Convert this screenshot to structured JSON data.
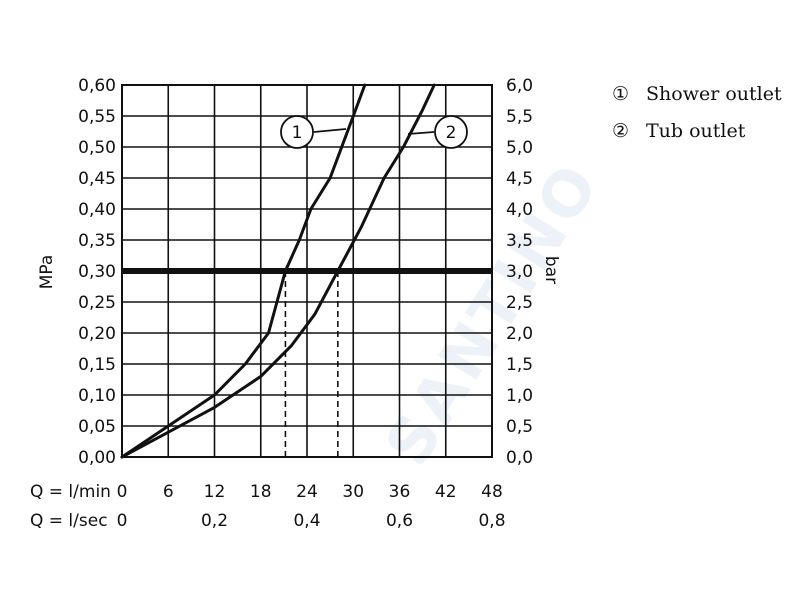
{
  "chart_data": {
    "type": "line",
    "ylabel": "MPa",
    "ylabel_right": "bar",
    "ylim": [
      0,
      0.6
    ],
    "y_ticks": [
      "0,00",
      "0,05",
      "0,10",
      "0,15",
      "0,20",
      "0,25",
      "0,30",
      "0,35",
      "0,40",
      "0,45",
      "0,50",
      "0,55",
      "0,60"
    ],
    "y_right_ticks": [
      "0,0",
      "0,5",
      "1,0",
      "1,5",
      "2,0",
      "2,5",
      "3,0",
      "3,5",
      "4,0",
      "4,5",
      "5,0",
      "5,5",
      "6,0"
    ],
    "xlim": [
      0,
      48
    ],
    "x_label_lmin": "Q = l/min",
    "x_ticks_lmin": [
      "0",
      "6",
      "12",
      "18",
      "24",
      "30",
      "36",
      "42",
      "48"
    ],
    "x_label_lsec": "Q = l/sec",
    "x_ticks_lsec": [
      {
        "value": 0,
        "label": "0"
      },
      {
        "value": 12,
        "label": "0,2"
      },
      {
        "value": 24,
        "label": "0,4"
      },
      {
        "value": 36,
        "label": "0,6"
      },
      {
        "value": 48,
        "label": "0,8"
      }
    ],
    "reference_line": {
      "y": 0.3
    },
    "dashed_markers": [
      {
        "series": "1",
        "x": 21.2,
        "y": 0.3
      },
      {
        "series": "2",
        "x": 28.0,
        "y": 0.3
      }
    ],
    "series": [
      {
        "id": "1",
        "name": "Shower outlet",
        "x": [
          0,
          6,
          12,
          16,
          19,
          21.2,
          23,
          24.5,
          27,
          30,
          31.5
        ],
        "y": [
          0,
          0.05,
          0.1,
          0.15,
          0.2,
          0.3,
          0.35,
          0.4,
          0.45,
          0.55,
          0.6
        ]
      },
      {
        "id": "2",
        "name": "Tub outlet",
        "x": [
          0,
          6,
          12,
          18,
          22,
          25,
          28,
          31,
          34,
          36.5,
          39,
          40.5
        ],
        "y": [
          0,
          0.04,
          0.08,
          0.13,
          0.18,
          0.23,
          0.3,
          0.37,
          0.45,
          0.5,
          0.56,
          0.6
        ]
      }
    ],
    "legend": [
      {
        "marker": "①",
        "label": "Shower outlet"
      },
      {
        "marker": "②",
        "label": "Tub outlet"
      }
    ],
    "callouts": [
      {
        "number": "1",
        "series": "1"
      },
      {
        "number": "2",
        "series": "2"
      }
    ],
    "grid": true,
    "legend_position": "top-right"
  },
  "watermark": "SANTINO"
}
